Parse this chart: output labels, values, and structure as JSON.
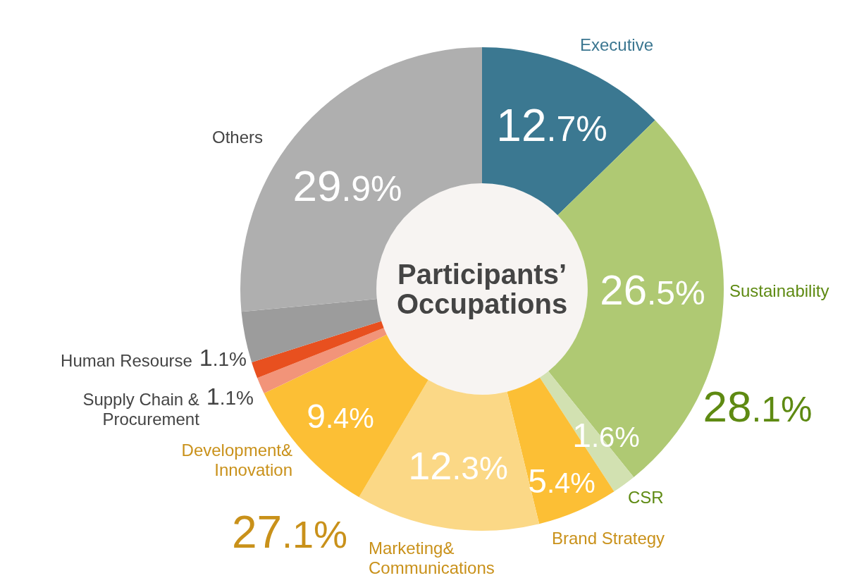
{
  "chart_data": {
    "type": "donut",
    "title": "Participants’ Occupations",
    "categories": [
      "Executive",
      "Sustainability",
      "CSR",
      "Brand Strategy",
      "Marketing& Communications",
      "Development& Innovation",
      "Supply Chain & Procurement",
      "Human Resourse",
      null,
      "Others"
    ],
    "values": [
      12.7,
      26.5,
      1.6,
      5.4,
      12.3,
      9.4,
      1.1,
      1.1,
      3.4,
      26.5
    ],
    "colors": [
      "#3b7891",
      "#afc973",
      "#d2e1b1",
      "#fcbf35",
      "#fbd886",
      "#fcbf35",
      "#f29479",
      "#e8501f",
      "#9c9c9c",
      "#afafaf"
    ],
    "value_labels": [
      "12.7%",
      "26.5%",
      "1.6%",
      "5.4%",
      "12.3%",
      "9.4%",
      "1.1%",
      "1.1%",
      null,
      null
    ],
    "annotations": [
      "28.1%",
      "27.1%",
      "29.9%"
    ]
  }
}
